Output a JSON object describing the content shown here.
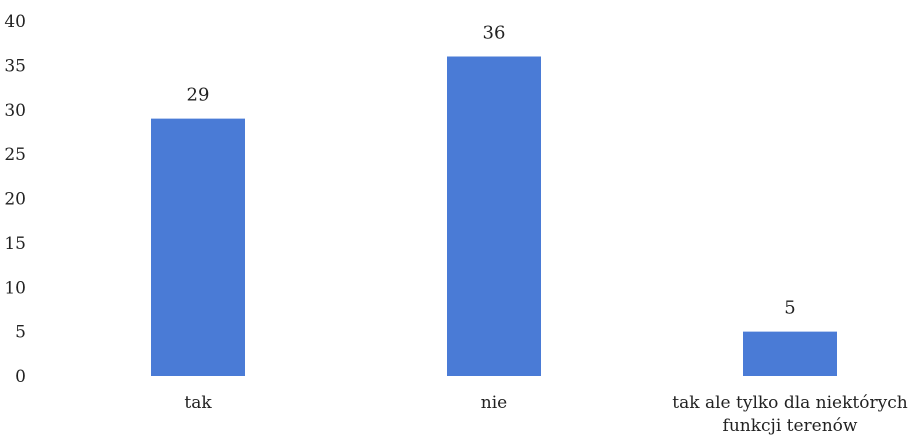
{
  "chart_data": {
    "type": "bar",
    "categories": [
      "tak",
      "nie",
      "tak ale tylko dla niektórych funkcji terenów"
    ],
    "category_label_lines": [
      [
        "tak"
      ],
      [
        "nie"
      ],
      [
        "tak ale tylko dla niektórych",
        "funkcji terenów"
      ]
    ],
    "values": [
      29,
      36,
      5
    ],
    "data_labels": [
      "29",
      "36",
      "5"
    ],
    "y_ticks": [
      0,
      5,
      10,
      15,
      20,
      25,
      30,
      35,
      40
    ],
    "ylim": [
      0,
      40
    ],
    "title": "",
    "xlabel": "",
    "ylabel": "",
    "grid": false,
    "legend": "none",
    "bar_color": "#4A7BD6"
  }
}
